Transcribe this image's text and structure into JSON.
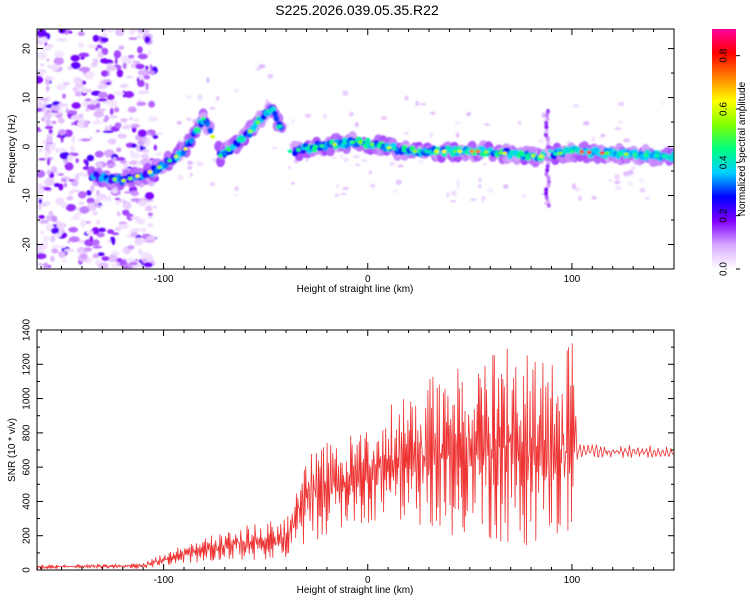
{
  "page_title": "S225.2026.039.05.35.R22",
  "chart_data": [
    {
      "type": "heatmap",
      "title": "S225.2026.039.05.35.R22",
      "xlabel": "Height of straight line (km)",
      "ylabel": "Frequency (Hz)",
      "xlim": [
        -162,
        150
      ],
      "ylim": [
        -25,
        24
      ],
      "xticks": [
        -100,
        0,
        100
      ],
      "yticks": [
        -20,
        -10,
        0,
        10,
        20
      ],
      "colorbar": {
        "label": "Normalized spectral amplitude",
        "range": [
          0,
          0.9
        ],
        "ticks": [
          "0.0",
          "0.2",
          "0.4",
          "0.6",
          "0.8"
        ],
        "colors": [
          "#ffffff",
          "#d8a8ff",
          "#8000ff",
          "#0000ff",
          "#00d0ff",
          "#00ff80",
          "#80ff00",
          "#ffff00",
          "#ff8000",
          "#ff0000",
          "#ff00a0"
        ]
      },
      "ridge": [
        {
          "x": -132,
          "f": -6
        },
        {
          "x": -120,
          "f": -7
        },
        {
          "x": -105,
          "f": -5
        },
        {
          "x": -90,
          "f": -1
        },
        {
          "x": -80,
          "f": 6
        },
        {
          "x": -72,
          "f": -2
        },
        {
          "x": -60,
          "f": 2
        },
        {
          "x": -47,
          "f": 8
        },
        {
          "x": -38,
          "f": -1
        },
        {
          "x": -25,
          "f": 0
        },
        {
          "x": -5,
          "f": 1
        },
        {
          "x": 20,
          "f": -1
        },
        {
          "x": 55,
          "f": -1
        },
        {
          "x": 85,
          "f": -2
        },
        {
          "x": 100,
          "f": -1
        },
        {
          "x": 148,
          "f": -2
        }
      ]
    },
    {
      "type": "line",
      "xlabel": "Height of straight line (km)",
      "ylabel": "SNR (10 * v/v)",
      "xlim": [
        -162,
        150
      ],
      "ylim": [
        0,
        1400
      ],
      "xticks": [
        -100,
        0,
        100
      ],
      "yticks": [
        0,
        200,
        400,
        600,
        800,
        1000,
        1200,
        1400
      ],
      "series": [
        {
          "name": "SNR",
          "color": "#ee3333",
          "envelope": [
            {
              "x": -162,
              "lo": 5,
              "hi": 30
            },
            {
              "x": -110,
              "lo": 10,
              "hi": 40
            },
            {
              "x": -90,
              "lo": 40,
              "hi": 150
            },
            {
              "x": -60,
              "lo": 60,
              "hi": 260
            },
            {
              "x": -40,
              "lo": 60,
              "hi": 300
            },
            {
              "x": -30,
              "lo": 150,
              "hi": 700
            },
            {
              "x": -10,
              "lo": 250,
              "hi": 780
            },
            {
              "x": 10,
              "lo": 300,
              "hi": 950
            },
            {
              "x": 40,
              "lo": 200,
              "hi": 1200
            },
            {
              "x": 70,
              "lo": 150,
              "hi": 1300
            },
            {
              "x": 95,
              "lo": 120,
              "hi": 1260
            },
            {
              "x": 100,
              "lo": 100,
              "hi": 1400
            },
            {
              "x": 103,
              "lo": 650,
              "hi": 740
            },
            {
              "x": 150,
              "lo": 650,
              "hi": 720
            }
          ]
        }
      ]
    }
  ]
}
